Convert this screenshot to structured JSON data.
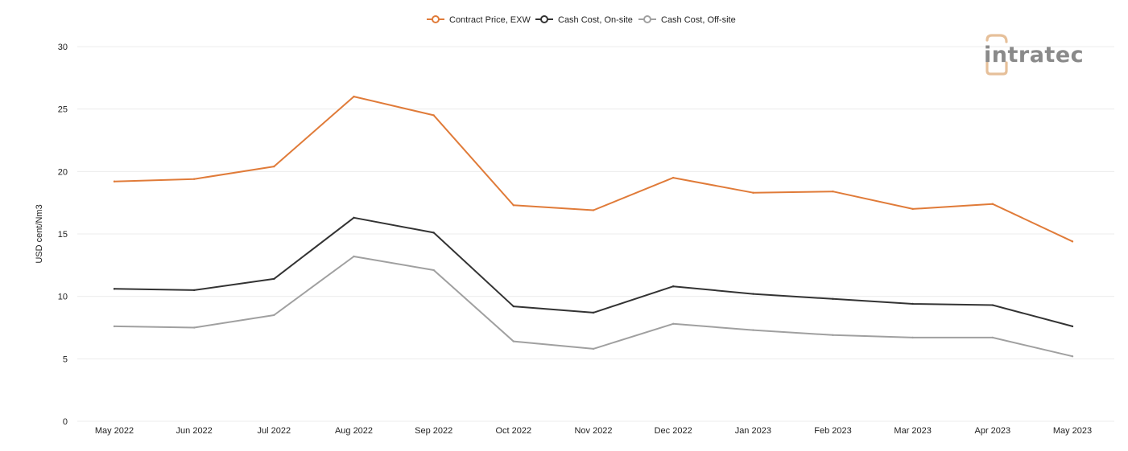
{
  "brand": {
    "logo_text": "intratec",
    "logo_color": "#8a8a8a",
    "logo_accent": "#e6c09a"
  },
  "chart_data": {
    "type": "line",
    "title": "",
    "xlabel": "",
    "ylabel": "USD cent/Nm3",
    "ylim": [
      0,
      30
    ],
    "yticks": [
      0,
      5,
      10,
      15,
      20,
      25,
      30
    ],
    "grid": true,
    "legend_position": "top-center",
    "categories": [
      "May 2022",
      "Jun 2022",
      "Jul 2022",
      "Aug 2022",
      "Sep 2022",
      "Oct 2022",
      "Nov 2022",
      "Dec 2022",
      "Jan 2023",
      "Feb 2023",
      "Mar 2023",
      "Apr 2023",
      "May 2023"
    ],
    "series": [
      {
        "name": "Contract Price, EXW",
        "color": "#e07b39",
        "values": [
          19.2,
          19.4,
          20.4,
          26.0,
          24.5,
          17.3,
          16.9,
          19.5,
          18.3,
          18.4,
          17.0,
          17.4,
          14.4
        ]
      },
      {
        "name": "Cash Cost, On-site",
        "color": "#333333",
        "values": [
          10.6,
          10.5,
          11.4,
          16.3,
          15.1,
          9.2,
          8.7,
          10.8,
          10.2,
          9.8,
          9.4,
          9.3,
          7.6
        ]
      },
      {
        "name": "Cash Cost, Off-site",
        "color": "#a0a0a0",
        "values": [
          7.6,
          7.5,
          8.5,
          13.2,
          12.1,
          6.4,
          5.8,
          7.8,
          7.3,
          6.9,
          6.7,
          6.7,
          5.2
        ]
      }
    ]
  }
}
